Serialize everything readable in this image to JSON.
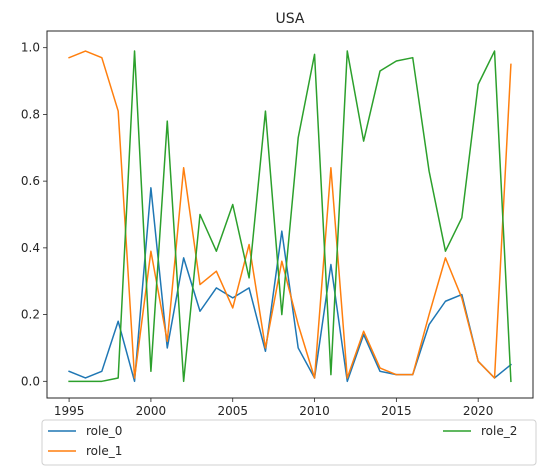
{
  "chart_data": {
    "type": "line",
    "title": "USA",
    "xlabel": "",
    "ylabel": "",
    "xlim": [
      1993.65,
      2023.35
    ],
    "ylim": [
      -0.05,
      1.05
    ],
    "xticks": [
      1995,
      2000,
      2005,
      2010,
      2015,
      2020
    ],
    "yticks": [
      0.0,
      0.2,
      0.4,
      0.6,
      0.8,
      1.0
    ],
    "ytick_labels": [
      "0.0",
      "0.2",
      "0.4",
      "0.6",
      "0.8",
      "1.0"
    ],
    "grid": false,
    "legend_position": "bottom",
    "x": [
      1995,
      1996,
      1997,
      1998,
      1999,
      2000,
      2001,
      2002,
      2003,
      2004,
      2005,
      2006,
      2007,
      2008,
      2009,
      2010,
      2011,
      2012,
      2013,
      2014,
      2015,
      2016,
      2017,
      2018,
      2019,
      2020,
      2021,
      2022
    ],
    "series": [
      {
        "name": "role_0",
        "color": "#1f77b4",
        "values": [
          0.03,
          0.01,
          0.03,
          0.18,
          0.0,
          0.58,
          0.1,
          0.37,
          0.21,
          0.28,
          0.25,
          0.28,
          0.09,
          0.45,
          0.1,
          0.01,
          0.35,
          0.0,
          0.14,
          0.03,
          0.02,
          0.02,
          0.17,
          0.24,
          0.26,
          0.06,
          0.01,
          0.05
        ]
      },
      {
        "name": "role_1",
        "color": "#ff7f0e",
        "values": [
          0.97,
          0.99,
          0.97,
          0.81,
          0.01,
          0.39,
          0.12,
          0.64,
          0.29,
          0.33,
          0.22,
          0.41,
          0.1,
          0.36,
          0.17,
          0.01,
          0.64,
          0.01,
          0.15,
          0.04,
          0.02,
          0.02,
          0.2,
          0.37,
          0.25,
          0.06,
          0.01,
          0.95
        ]
      },
      {
        "name": "role_2",
        "color": "#2ca02c",
        "values": [
          0.0,
          0.0,
          0.0,
          0.01,
          0.99,
          0.03,
          0.78,
          0.0,
          0.5,
          0.39,
          0.53,
          0.31,
          0.81,
          0.2,
          0.73,
          0.98,
          0.02,
          0.99,
          0.72,
          0.93,
          0.96,
          0.97,
          0.63,
          0.39,
          0.49,
          0.89,
          0.99,
          0.0
        ]
      }
    ]
  }
}
